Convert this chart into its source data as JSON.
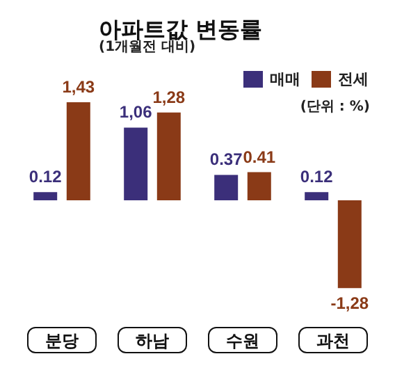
{
  "chart_data": {
    "type": "bar",
    "title": "아파트값 변동률",
    "subtitle": "(1개월전 대비)",
    "annotations": [
      "(단위 : %)"
    ],
    "categories": [
      "분당",
      "하남",
      "수원",
      "과천"
    ],
    "legend": "top right",
    "series": [
      {
        "name": "매매",
        "color": "#3b2f7a",
        "values": [
          0.12,
          1.06,
          0.37,
          0.12
        ],
        "value_labels": [
          "0.12",
          "1,06",
          "0.37",
          "0.12"
        ]
      },
      {
        "name": "전세",
        "color": "#8a3a17",
        "values": [
          1.43,
          1.28,
          0.41,
          -1.28
        ],
        "value_labels": [
          "1,43",
          "1,28",
          "0.41",
          "-1,28"
        ]
      }
    ]
  }
}
